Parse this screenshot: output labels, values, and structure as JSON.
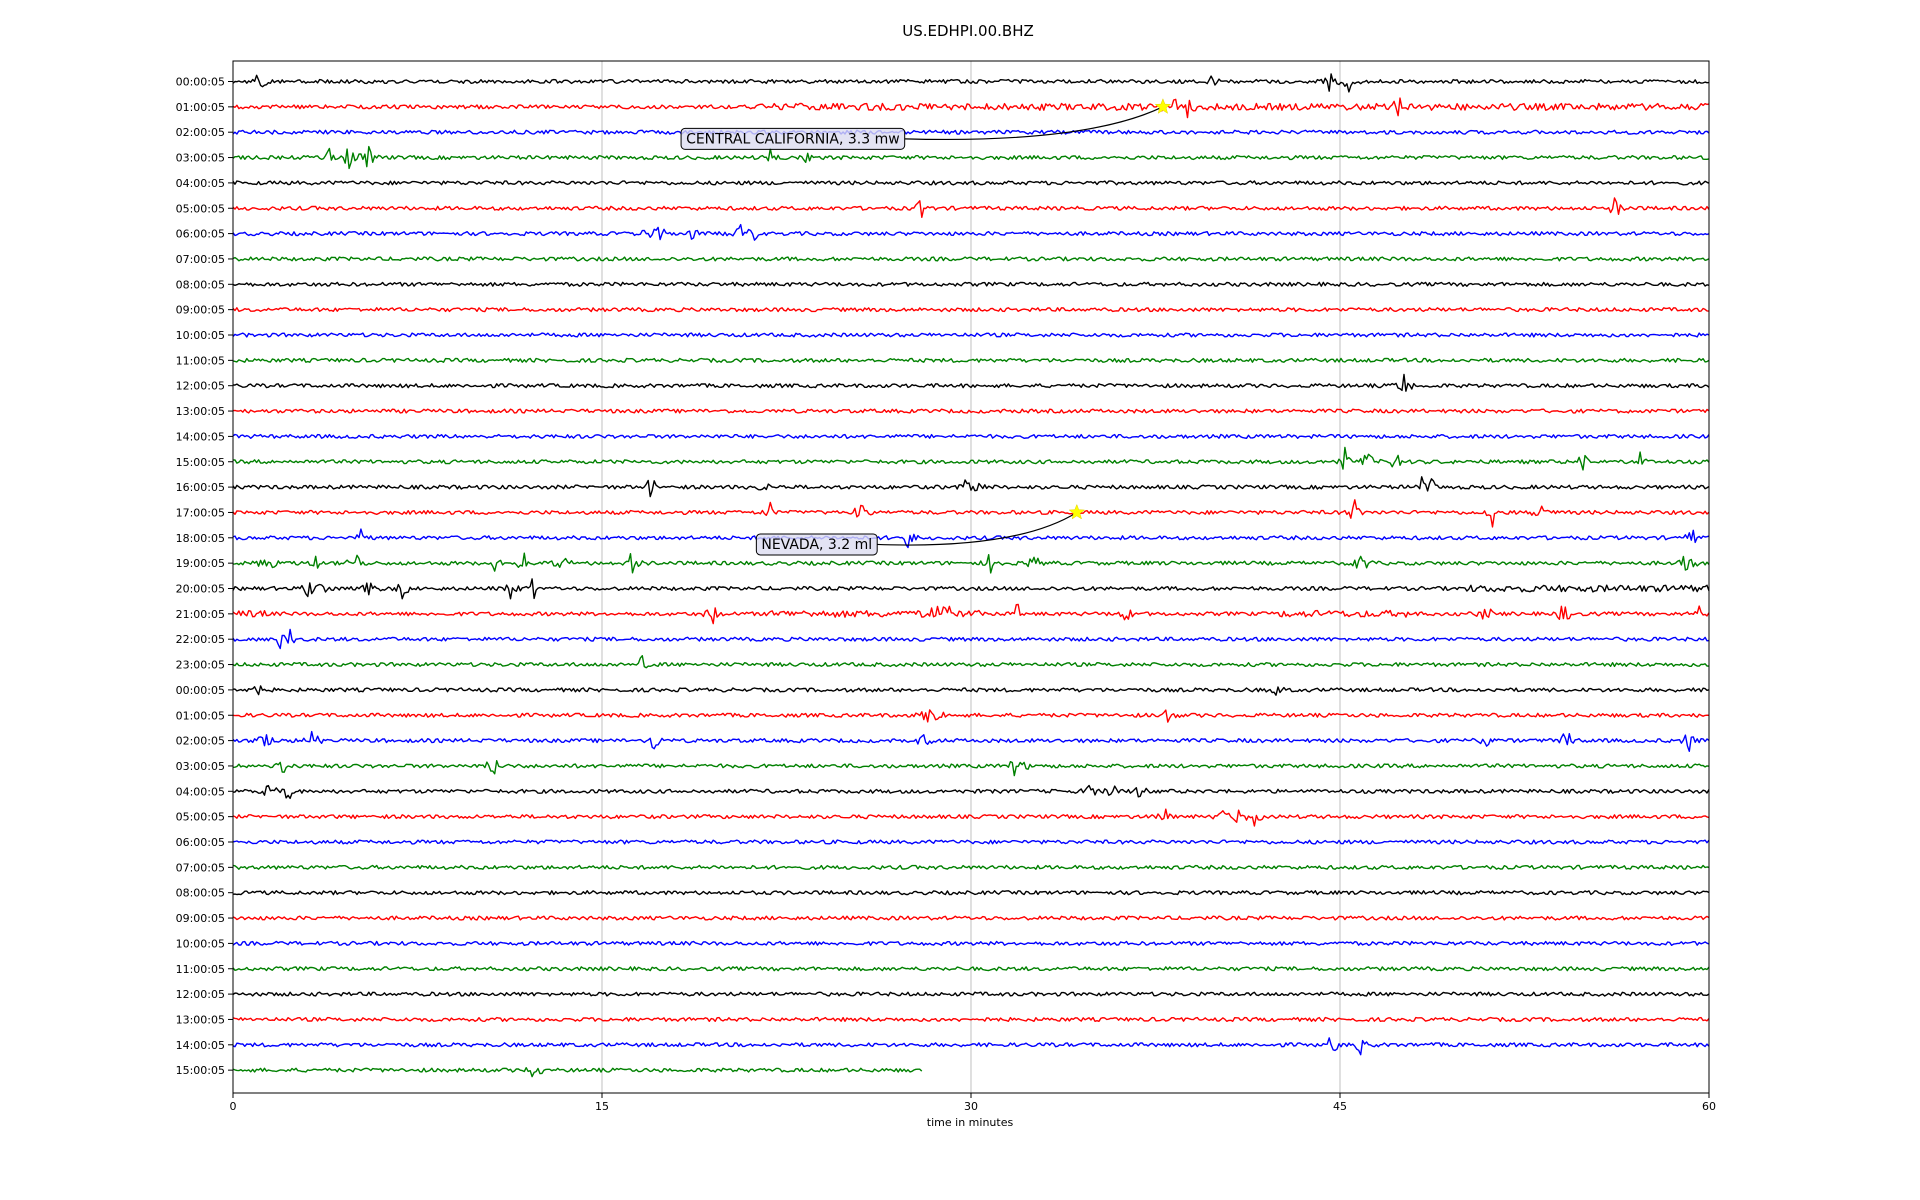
{
  "chart_data": {
    "type": "line",
    "title": "US.EDHPI.00.BHZ",
    "xlabel": "time in minutes",
    "ylabel": "",
    "xlim": [
      0,
      60
    ],
    "xticks": [
      0,
      15,
      30,
      45,
      60
    ],
    "grid": "vertical lines at x ticks",
    "line_colors": [
      "#000000",
      "#ff0000",
      "#0000ff",
      "#008000"
    ],
    "row_labels": [
      "00:00:05",
      "01:00:05",
      "02:00:05",
      "03:00:05",
      "04:00:05",
      "05:00:05",
      "06:00:05",
      "07:00:05",
      "08:00:05",
      "09:00:05",
      "10:00:05",
      "11:00:05",
      "12:00:05",
      "13:00:05",
      "14:00:05",
      "15:00:05",
      "16:00:05",
      "17:00:05",
      "18:00:05",
      "19:00:05",
      "20:00:05",
      "21:00:05",
      "22:00:05",
      "23:00:05",
      "00:00:05",
      "01:00:05",
      "02:00:05",
      "03:00:05",
      "04:00:05",
      "05:00:05",
      "06:00:05",
      "07:00:05",
      "08:00:05",
      "09:00:05",
      "10:00:05",
      "11:00:05",
      "12:00:05",
      "13:00:05",
      "14:00:05",
      "15:00:05"
    ],
    "last_row_end_minute": 28,
    "bursts": [
      {
        "row": 0,
        "x": [
          1.1,
          39.8,
          44.6,
          45.4
        ]
      },
      {
        "row": 1,
        "x": [
          38.2,
          38.8,
          39.1,
          47.4
        ]
      },
      {
        "row": 3,
        "x": [
          3.9,
          4.7,
          5.5,
          21.9,
          23.4
        ]
      },
      {
        "row": 5,
        "x": [
          28.0,
          56.2
        ]
      },
      {
        "row": 6,
        "x": [
          16.8,
          17.3,
          18.7,
          20.6,
          21.1
        ]
      },
      {
        "row": 12,
        "x": [
          47.6
        ]
      },
      {
        "row": 15,
        "x": [
          45.2,
          46.1,
          47.3,
          54.9,
          57.2
        ]
      },
      {
        "row": 16,
        "x": [
          17.0,
          21.6,
          29.8,
          30.2,
          48.3,
          48.7
        ]
      },
      {
        "row": 17,
        "x": [
          21.8,
          25.5,
          45.6,
          51.2,
          53.2
        ]
      },
      {
        "row": 18,
        "x": [
          5.3,
          27.5,
          59.3
        ]
      },
      {
        "row": 19,
        "x": [
          1.4,
          3.4,
          5.0,
          10.7,
          11.8,
          13.4,
          16.2,
          30.8,
          32.5,
          45.9,
          59.1
        ]
      },
      {
        "row": 20,
        "x": [
          3.1,
          3.5,
          5.5,
          6.9,
          11.3,
          12.2
        ]
      },
      {
        "row": 21,
        "x": [
          19.5,
          28.5,
          29.0,
          31.9,
          36.3,
          51.0,
          54.1,
          59.6
        ]
      },
      {
        "row": 22,
        "x": [
          1.9,
          2.3
        ]
      },
      {
        "row": 23,
        "x": [
          16.7
        ]
      },
      {
        "row": 24,
        "x": [
          0.9,
          42.5
        ]
      },
      {
        "row": 25,
        "x": [
          28.2,
          28.6,
          38.0
        ]
      },
      {
        "row": 26,
        "x": [
          1.3,
          3.2,
          17.1,
          28.0,
          50.9,
          54.2,
          59.2
        ]
      },
      {
        "row": 27,
        "x": [
          2.0,
          10.6,
          31.8,
          32.3
        ]
      },
      {
        "row": 28,
        "x": [
          1.4,
          2.2,
          34.8,
          35.8,
          36.9
        ]
      },
      {
        "row": 29,
        "x": [
          37.9,
          40.3,
          40.9,
          41.6
        ]
      },
      {
        "row": 38,
        "x": [
          44.7,
          45.9
        ]
      },
      {
        "row": 39,
        "x": [
          12.3
        ]
      }
    ],
    "noisy_segments": [
      {
        "row": 1,
        "x0": 21.0,
        "x1": 60.0
      },
      {
        "row": 20,
        "x0": 50.0,
        "x1": 60.0
      },
      {
        "row": 21,
        "x0": 0.0,
        "x1": 1.5
      },
      {
        "row": 21,
        "x0": 21.8,
        "x1": 30.5
      },
      {
        "row": 21,
        "x0": 42.5,
        "x1": 48.3
      }
    ],
    "events": [
      {
        "label": "CENTRAL CALIFORNIA, 3.3 mw",
        "row": 1,
        "x": 37.8
      },
      {
        "label": "NEVADA, 3.2 ml",
        "row": 17,
        "x": 34.3
      }
    ]
  }
}
